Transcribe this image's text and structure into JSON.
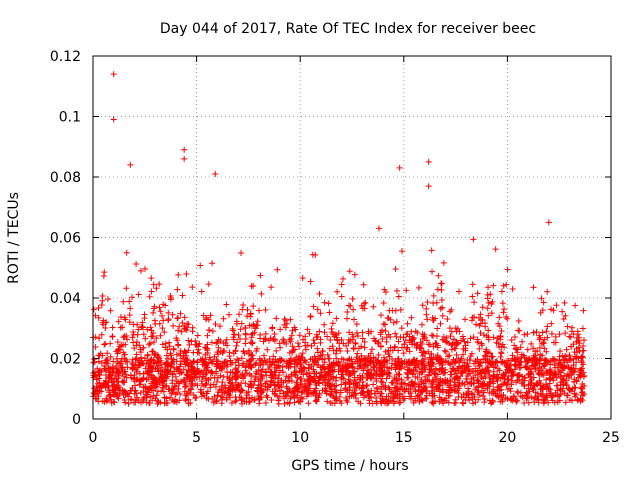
{
  "chart_data": {
    "type": "scatter",
    "title": "Day 044 of 2017, Rate Of TEC Index for receiver beec",
    "xlabel": "GPS time / hours",
    "ylabel": "ROTI / TECUs",
    "xlim": [
      0,
      25
    ],
    "ylim": [
      0,
      0.12
    ],
    "x_ticks": [
      0,
      5,
      10,
      15,
      20,
      25
    ],
    "y_ticks": [
      0,
      0.02,
      0.04,
      0.06,
      0.08,
      0.1,
      0.12
    ],
    "x_tick_labels": [
      "0",
      "5",
      "10",
      "15",
      "20",
      "25"
    ],
    "y_tick_labels": [
      "0",
      "0.02",
      "0.04",
      "0.06",
      "0.08",
      "0.1",
      "0.12"
    ],
    "grid": true,
    "marker": "+",
    "color": "#ff0000",
    "x_range_data": [
      0,
      23.7
    ],
    "baseline_roti_range": [
      0.005,
      0.02
    ],
    "notable_points": [
      {
        "x": 1.0,
        "y": 0.114
      },
      {
        "x": 1.0,
        "y": 0.099
      },
      {
        "x": 1.8,
        "y": 0.084
      },
      {
        "x": 4.4,
        "y": 0.089
      },
      {
        "x": 4.4,
        "y": 0.086
      },
      {
        "x": 5.9,
        "y": 0.081
      },
      {
        "x": 14.8,
        "y": 0.083
      },
      {
        "x": 16.2,
        "y": 0.085
      },
      {
        "x": 16.2,
        "y": 0.077
      },
      {
        "x": 13.8,
        "y": 0.063
      },
      {
        "x": 22.0,
        "y": 0.065
      }
    ]
  }
}
